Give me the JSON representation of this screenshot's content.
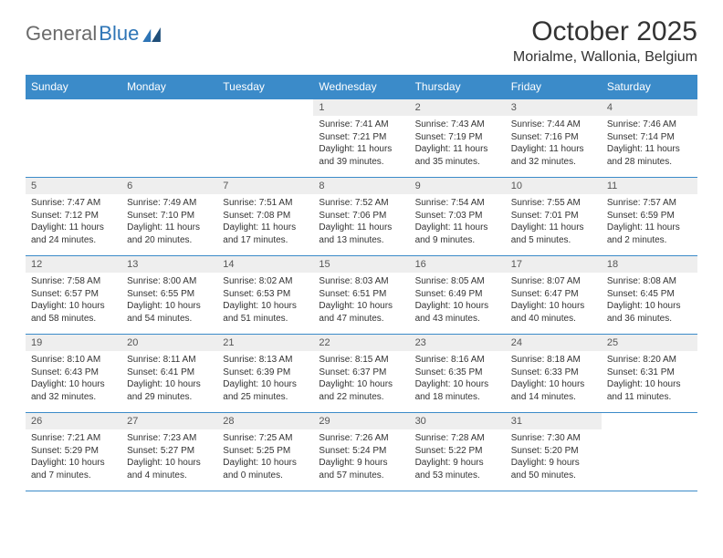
{
  "logo": {
    "text1": "General",
    "text2": "Blue"
  },
  "title": "October 2025",
  "location": "Morialme, Wallonia, Belgium",
  "colors": {
    "header_bg": "#3b8bc9",
    "header_text": "#ffffff",
    "daynum_bg": "#eeeeee",
    "border": "#3b8bc9",
    "logo_gray": "#6b6b6b",
    "logo_blue": "#2e75b6"
  },
  "columns": [
    "Sunday",
    "Monday",
    "Tuesday",
    "Wednesday",
    "Thursday",
    "Friday",
    "Saturday"
  ],
  "weeks": [
    [
      {
        "day": "",
        "sunrise": "",
        "sunset": "",
        "daylight": ""
      },
      {
        "day": "",
        "sunrise": "",
        "sunset": "",
        "daylight": ""
      },
      {
        "day": "",
        "sunrise": "",
        "sunset": "",
        "daylight": ""
      },
      {
        "day": "1",
        "sunrise": "Sunrise: 7:41 AM",
        "sunset": "Sunset: 7:21 PM",
        "daylight": "Daylight: 11 hours and 39 minutes."
      },
      {
        "day": "2",
        "sunrise": "Sunrise: 7:43 AM",
        "sunset": "Sunset: 7:19 PM",
        "daylight": "Daylight: 11 hours and 35 minutes."
      },
      {
        "day": "3",
        "sunrise": "Sunrise: 7:44 AM",
        "sunset": "Sunset: 7:16 PM",
        "daylight": "Daylight: 11 hours and 32 minutes."
      },
      {
        "day": "4",
        "sunrise": "Sunrise: 7:46 AM",
        "sunset": "Sunset: 7:14 PM",
        "daylight": "Daylight: 11 hours and 28 minutes."
      }
    ],
    [
      {
        "day": "5",
        "sunrise": "Sunrise: 7:47 AM",
        "sunset": "Sunset: 7:12 PM",
        "daylight": "Daylight: 11 hours and 24 minutes."
      },
      {
        "day": "6",
        "sunrise": "Sunrise: 7:49 AM",
        "sunset": "Sunset: 7:10 PM",
        "daylight": "Daylight: 11 hours and 20 minutes."
      },
      {
        "day": "7",
        "sunrise": "Sunrise: 7:51 AM",
        "sunset": "Sunset: 7:08 PM",
        "daylight": "Daylight: 11 hours and 17 minutes."
      },
      {
        "day": "8",
        "sunrise": "Sunrise: 7:52 AM",
        "sunset": "Sunset: 7:06 PM",
        "daylight": "Daylight: 11 hours and 13 minutes."
      },
      {
        "day": "9",
        "sunrise": "Sunrise: 7:54 AM",
        "sunset": "Sunset: 7:03 PM",
        "daylight": "Daylight: 11 hours and 9 minutes."
      },
      {
        "day": "10",
        "sunrise": "Sunrise: 7:55 AM",
        "sunset": "Sunset: 7:01 PM",
        "daylight": "Daylight: 11 hours and 5 minutes."
      },
      {
        "day": "11",
        "sunrise": "Sunrise: 7:57 AM",
        "sunset": "Sunset: 6:59 PM",
        "daylight": "Daylight: 11 hours and 2 minutes."
      }
    ],
    [
      {
        "day": "12",
        "sunrise": "Sunrise: 7:58 AM",
        "sunset": "Sunset: 6:57 PM",
        "daylight": "Daylight: 10 hours and 58 minutes."
      },
      {
        "day": "13",
        "sunrise": "Sunrise: 8:00 AM",
        "sunset": "Sunset: 6:55 PM",
        "daylight": "Daylight: 10 hours and 54 minutes."
      },
      {
        "day": "14",
        "sunrise": "Sunrise: 8:02 AM",
        "sunset": "Sunset: 6:53 PM",
        "daylight": "Daylight: 10 hours and 51 minutes."
      },
      {
        "day": "15",
        "sunrise": "Sunrise: 8:03 AM",
        "sunset": "Sunset: 6:51 PM",
        "daylight": "Daylight: 10 hours and 47 minutes."
      },
      {
        "day": "16",
        "sunrise": "Sunrise: 8:05 AM",
        "sunset": "Sunset: 6:49 PM",
        "daylight": "Daylight: 10 hours and 43 minutes."
      },
      {
        "day": "17",
        "sunrise": "Sunrise: 8:07 AM",
        "sunset": "Sunset: 6:47 PM",
        "daylight": "Daylight: 10 hours and 40 minutes."
      },
      {
        "day": "18",
        "sunrise": "Sunrise: 8:08 AM",
        "sunset": "Sunset: 6:45 PM",
        "daylight": "Daylight: 10 hours and 36 minutes."
      }
    ],
    [
      {
        "day": "19",
        "sunrise": "Sunrise: 8:10 AM",
        "sunset": "Sunset: 6:43 PM",
        "daylight": "Daylight: 10 hours and 32 minutes."
      },
      {
        "day": "20",
        "sunrise": "Sunrise: 8:11 AM",
        "sunset": "Sunset: 6:41 PM",
        "daylight": "Daylight: 10 hours and 29 minutes."
      },
      {
        "day": "21",
        "sunrise": "Sunrise: 8:13 AM",
        "sunset": "Sunset: 6:39 PM",
        "daylight": "Daylight: 10 hours and 25 minutes."
      },
      {
        "day": "22",
        "sunrise": "Sunrise: 8:15 AM",
        "sunset": "Sunset: 6:37 PM",
        "daylight": "Daylight: 10 hours and 22 minutes."
      },
      {
        "day": "23",
        "sunrise": "Sunrise: 8:16 AM",
        "sunset": "Sunset: 6:35 PM",
        "daylight": "Daylight: 10 hours and 18 minutes."
      },
      {
        "day": "24",
        "sunrise": "Sunrise: 8:18 AM",
        "sunset": "Sunset: 6:33 PM",
        "daylight": "Daylight: 10 hours and 14 minutes."
      },
      {
        "day": "25",
        "sunrise": "Sunrise: 8:20 AM",
        "sunset": "Sunset: 6:31 PM",
        "daylight": "Daylight: 10 hours and 11 minutes."
      }
    ],
    [
      {
        "day": "26",
        "sunrise": "Sunrise: 7:21 AM",
        "sunset": "Sunset: 5:29 PM",
        "daylight": "Daylight: 10 hours and 7 minutes."
      },
      {
        "day": "27",
        "sunrise": "Sunrise: 7:23 AM",
        "sunset": "Sunset: 5:27 PM",
        "daylight": "Daylight: 10 hours and 4 minutes."
      },
      {
        "day": "28",
        "sunrise": "Sunrise: 7:25 AM",
        "sunset": "Sunset: 5:25 PM",
        "daylight": "Daylight: 10 hours and 0 minutes."
      },
      {
        "day": "29",
        "sunrise": "Sunrise: 7:26 AM",
        "sunset": "Sunset: 5:24 PM",
        "daylight": "Daylight: 9 hours and 57 minutes."
      },
      {
        "day": "30",
        "sunrise": "Sunrise: 7:28 AM",
        "sunset": "Sunset: 5:22 PM",
        "daylight": "Daylight: 9 hours and 53 minutes."
      },
      {
        "day": "31",
        "sunrise": "Sunrise: 7:30 AM",
        "sunset": "Sunset: 5:20 PM",
        "daylight": "Daylight: 9 hours and 50 minutes."
      },
      {
        "day": "",
        "sunrise": "",
        "sunset": "",
        "daylight": ""
      }
    ]
  ]
}
